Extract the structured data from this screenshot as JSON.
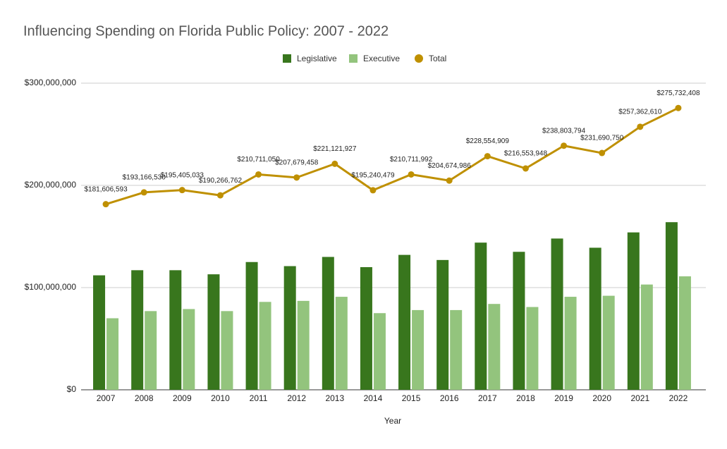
{
  "chart_data": {
    "type": "bar",
    "title": "Influencing Spending on Florida Public Policy: 2007 - 2022",
    "x_label": "Year",
    "categories": [
      "2007",
      "2008",
      "2009",
      "2010",
      "2011",
      "2012",
      "2013",
      "2014",
      "2015",
      "2016",
      "2017",
      "2018",
      "2019",
      "2020",
      "2021",
      "2022"
    ],
    "series": [
      {
        "name": "Legislative",
        "type": "bar",
        "color": "#38761d",
        "values": [
          112000000,
          117000000,
          117000000,
          113000000,
          125000000,
          121000000,
          130000000,
          120000000,
          132000000,
          127000000,
          144000000,
          135000000,
          148000000,
          139000000,
          154000000,
          164000000
        ]
      },
      {
        "name": "Executive",
        "type": "bar",
        "color": "#93c47d",
        "values": [
          70000000,
          77000000,
          79000000,
          77000000,
          86000000,
          87000000,
          91000000,
          75000000,
          78000000,
          78000000,
          84000000,
          81000000,
          91000000,
          92000000,
          103000000,
          111000000
        ]
      },
      {
        "name": "Total",
        "type": "line",
        "color": "#bf9000",
        "values": [
          181606593,
          193166530,
          195405033,
          190266762,
          210711050,
          207679458,
          221121927,
          195240479,
          210711992,
          204674986,
          228554909,
          216553948,
          238803794,
          231690750,
          257362610,
          275732408
        ],
        "value_labels": [
          "$181,606,593",
          "$193,166,530",
          "$195,405,033",
          "$190,266,762",
          "$210,711,050",
          "$207,679,458",
          "$221,121,927",
          "$195,240,479",
          "$210,711,992",
          "$204,674,986",
          "$228,554,909",
          "$216,553,948",
          "$238,803,794",
          "$231,690,750",
          "$257,362,610",
          "$275,732,408"
        ]
      }
    ],
    "ylim": [
      0,
      300000000
    ],
    "yticks": [
      {
        "value": 0,
        "label": "$0"
      },
      {
        "value": 100000000,
        "label": "$100,000,000"
      },
      {
        "value": 200000000,
        "label": "$200,000,000"
      },
      {
        "value": 300000000,
        "label": "$300,000,000"
      }
    ],
    "grid": true,
    "legend": "top"
  }
}
